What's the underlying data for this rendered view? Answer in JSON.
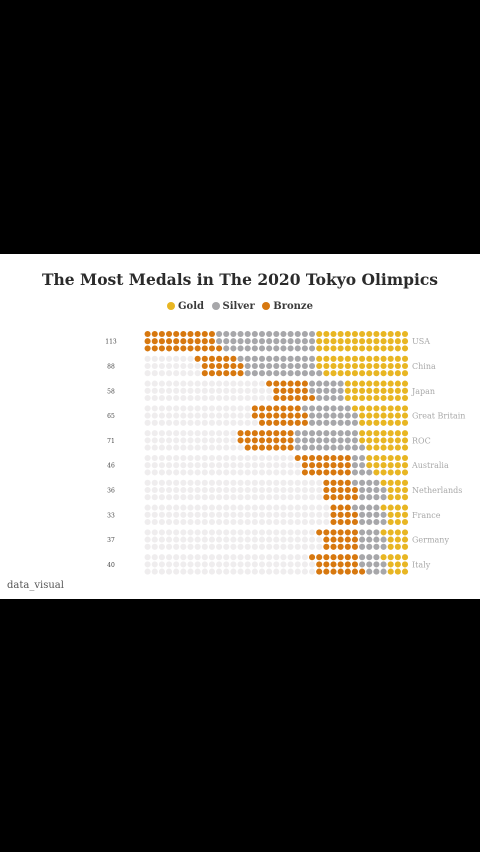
{
  "chart_data": {
    "type": "waffle",
    "title": "The Most Medals in The 2020 Tokyo Olimpics",
    "legend": [
      "Gold",
      "Silver",
      "Bronze"
    ],
    "legend_position": "top-center",
    "colors": {
      "Gold": "#e8b623",
      "Silver": "#a7a7aa",
      "Bronze": "#d7780f",
      "empty": "#efedee"
    },
    "dots_per_column": 3,
    "total_columns": 37,
    "countries": [
      {
        "name": "USA",
        "total_label": "113",
        "gold": 39,
        "silver": 41,
        "bronze": 33
      },
      {
        "name": "China",
        "total_label": "88",
        "gold": 38,
        "silver": 32,
        "bronze": 18
      },
      {
        "name": "Japan",
        "total_label": "58",
        "gold": 27,
        "silver": 14,
        "bronze": 17
      },
      {
        "name": "Great Britain",
        "total_label": "65",
        "gold": 22,
        "silver": 21,
        "bronze": 22
      },
      {
        "name": "ROC",
        "total_label": "71",
        "gold": 20,
        "silver": 28,
        "bronze": 23
      },
      {
        "name": "Australia",
        "total_label": "46",
        "gold": 17,
        "silver": 7,
        "bronze": 22
      },
      {
        "name": "Netherlands",
        "total_label": "36",
        "gold": 10,
        "silver": 12,
        "bronze": 14
      },
      {
        "name": "France",
        "total_label": "33",
        "gold": 10,
        "silver": 12,
        "bronze": 11
      },
      {
        "name": "Germany",
        "total_label": "37",
        "gold": 10,
        "silver": 11,
        "bronze": 16
      },
      {
        "name": "Italy",
        "total_label": "40",
        "gold": 10,
        "silver": 10,
        "bronze": 20
      }
    ]
  },
  "credit": "data_visual"
}
